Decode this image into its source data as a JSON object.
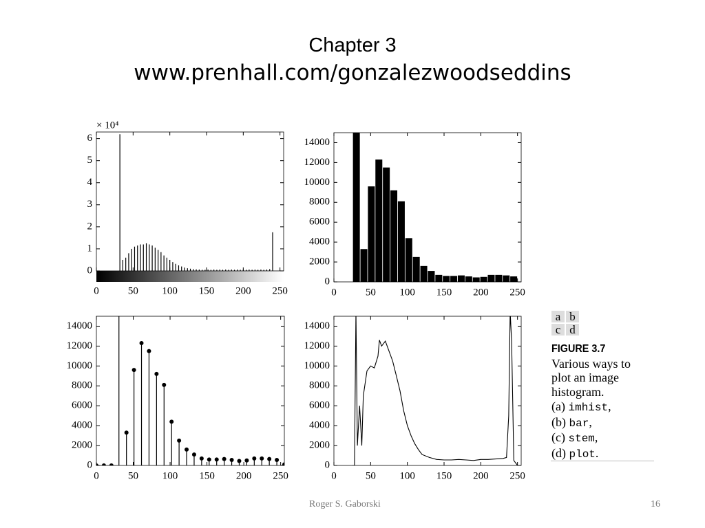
{
  "title": "Chapter 3",
  "subtitle": "www.prenhall.com/gonzalezwoodseddins",
  "chart_data": [
    {
      "type": "stem",
      "markers": false,
      "colorbar": true,
      "y_scale_label": "× 10⁴",
      "x": [
        28,
        32,
        36,
        40,
        44,
        48,
        52,
        56,
        60,
        64,
        68,
        72,
        76,
        80,
        84,
        88,
        92,
        96,
        100,
        104,
        108,
        112,
        116,
        120,
        124,
        128,
        132,
        136,
        140,
        144,
        148,
        152,
        156,
        160,
        164,
        168,
        172,
        176,
        180,
        184,
        188,
        192,
        196,
        200,
        204,
        208,
        212,
        216,
        220,
        224,
        228,
        232,
        236,
        240,
        244
      ],
      "values": [
        0,
        6.2,
        0.5,
        0.6,
        0.8,
        1.0,
        1.1,
        1.15,
        1.2,
        1.2,
        1.25,
        1.2,
        1.15,
        1.05,
        0.95,
        0.85,
        0.7,
        0.6,
        0.5,
        0.4,
        0.32,
        0.25,
        0.2,
        0.15,
        0.12,
        0.1,
        0.08,
        0.07,
        0.06,
        0.05,
        0.05,
        0.06,
        0.05,
        0.06,
        0.05,
        0.06,
        0.05,
        0.06,
        0.05,
        0.06,
        0.05,
        0.06,
        0.05,
        0.06,
        0.05,
        0.06,
        0.05,
        0.06,
        0.05,
        0.06,
        0.05,
        0.06,
        0.08,
        1.75,
        0
      ],
      "color": "#000000",
      "xlim": [
        0,
        255
      ],
      "ylim": [
        0,
        6.3
      ],
      "xticks": [
        0,
        50,
        100,
        150,
        200,
        250
      ],
      "yticks": [
        0,
        1,
        2,
        3,
        4,
        5,
        6
      ]
    },
    {
      "type": "bar",
      "x": [
        30.6,
        40.8,
        51,
        61.2,
        71.4,
        81.6,
        91.8,
        102,
        112.2,
        122.4,
        132.6,
        142.8,
        153,
        163.2,
        173.4,
        183.6,
        193.8,
        204,
        214.2,
        224.4,
        234.6,
        244.8
      ],
      "values": [
        15500,
        3300,
        9600,
        12300,
        11500,
        9200,
        8100,
        4400,
        2500,
        1600,
        1100,
        700,
        600,
        600,
        650,
        550,
        450,
        500,
        700,
        700,
        650,
        550
      ],
      "color": "#000000",
      "xlim": [
        0,
        255
      ],
      "ylim": [
        0,
        15000
      ],
      "xticks": [
        0,
        50,
        100,
        150,
        200,
        250
      ],
      "yticks": [
        0,
        2000,
        4000,
        6000,
        8000,
        10000,
        12000,
        14000
      ]
    },
    {
      "type": "stem",
      "markers": true,
      "x": [
        0,
        10.2,
        20.4,
        30.6,
        40.8,
        51,
        61.2,
        71.4,
        81.6,
        91.8,
        102,
        112.2,
        122.4,
        132.6,
        142.8,
        153,
        163.2,
        173.4,
        183.6,
        193.8,
        204,
        214.2,
        224.4,
        234.6,
        244.8,
        255
      ],
      "values": [
        0,
        0,
        0,
        15500,
        3300,
        9600,
        12300,
        11500,
        9200,
        8100,
        4400,
        2500,
        1600,
        1100,
        700,
        600,
        600,
        650,
        550,
        450,
        500,
        700,
        700,
        650,
        550,
        100
      ],
      "color": "#000000",
      "xlim": [
        0,
        255
      ],
      "ylim": [
        0,
        15000
      ],
      "xticks": [
        0,
        50,
        100,
        150,
        200,
        250
      ],
      "yticks": [
        0,
        2000,
        4000,
        6000,
        8000,
        10000,
        12000,
        14000
      ]
    },
    {
      "type": "line",
      "x": [
        25,
        28,
        30,
        32,
        35,
        38,
        40,
        45,
        50,
        55,
        60,
        62,
        65,
        70,
        75,
        80,
        85,
        90,
        95,
        100,
        105,
        110,
        115,
        120,
        130,
        140,
        150,
        160,
        170,
        180,
        190,
        200,
        210,
        220,
        230,
        235,
        238,
        240,
        242,
        245,
        250
      ],
      "values": [
        0,
        0,
        15500,
        2000,
        6000,
        2000,
        7000,
        9500,
        10000,
        9800,
        11000,
        12600,
        12000,
        12500,
        11500,
        10500,
        9000,
        7500,
        5500,
        4000,
        3000,
        2200,
        1600,
        1100,
        800,
        600,
        550,
        550,
        600,
        550,
        500,
        600,
        600,
        650,
        700,
        800,
        5000,
        15500,
        12500,
        500,
        0
      ],
      "color": "#000000",
      "xlim": [
        0,
        255
      ],
      "ylim": [
        0,
        15000
      ],
      "xticks": [
        0,
        50,
        100,
        150,
        200,
        250
      ],
      "yticks": [
        0,
        2000,
        4000,
        6000,
        8000,
        10000,
        12000,
        14000
      ]
    }
  ],
  "caption": {
    "panels": [
      [
        "a",
        "b"
      ],
      [
        "c",
        "d"
      ]
    ],
    "figure": "FIGURE 3.7",
    "lines": [
      "Various ways to",
      "plot an image",
      "histogram."
    ],
    "items": [
      {
        "label": "(a)",
        "code": "imhist",
        "punct": ","
      },
      {
        "label": "(b)",
        "code": "bar",
        "punct": ","
      },
      {
        "label": "(c)",
        "code": "stem",
        "punct": ","
      },
      {
        "label": "(d)",
        "code": "plot",
        "punct": "."
      }
    ]
  },
  "footer": {
    "author": "Roger S. Gaborski",
    "page": "16"
  }
}
